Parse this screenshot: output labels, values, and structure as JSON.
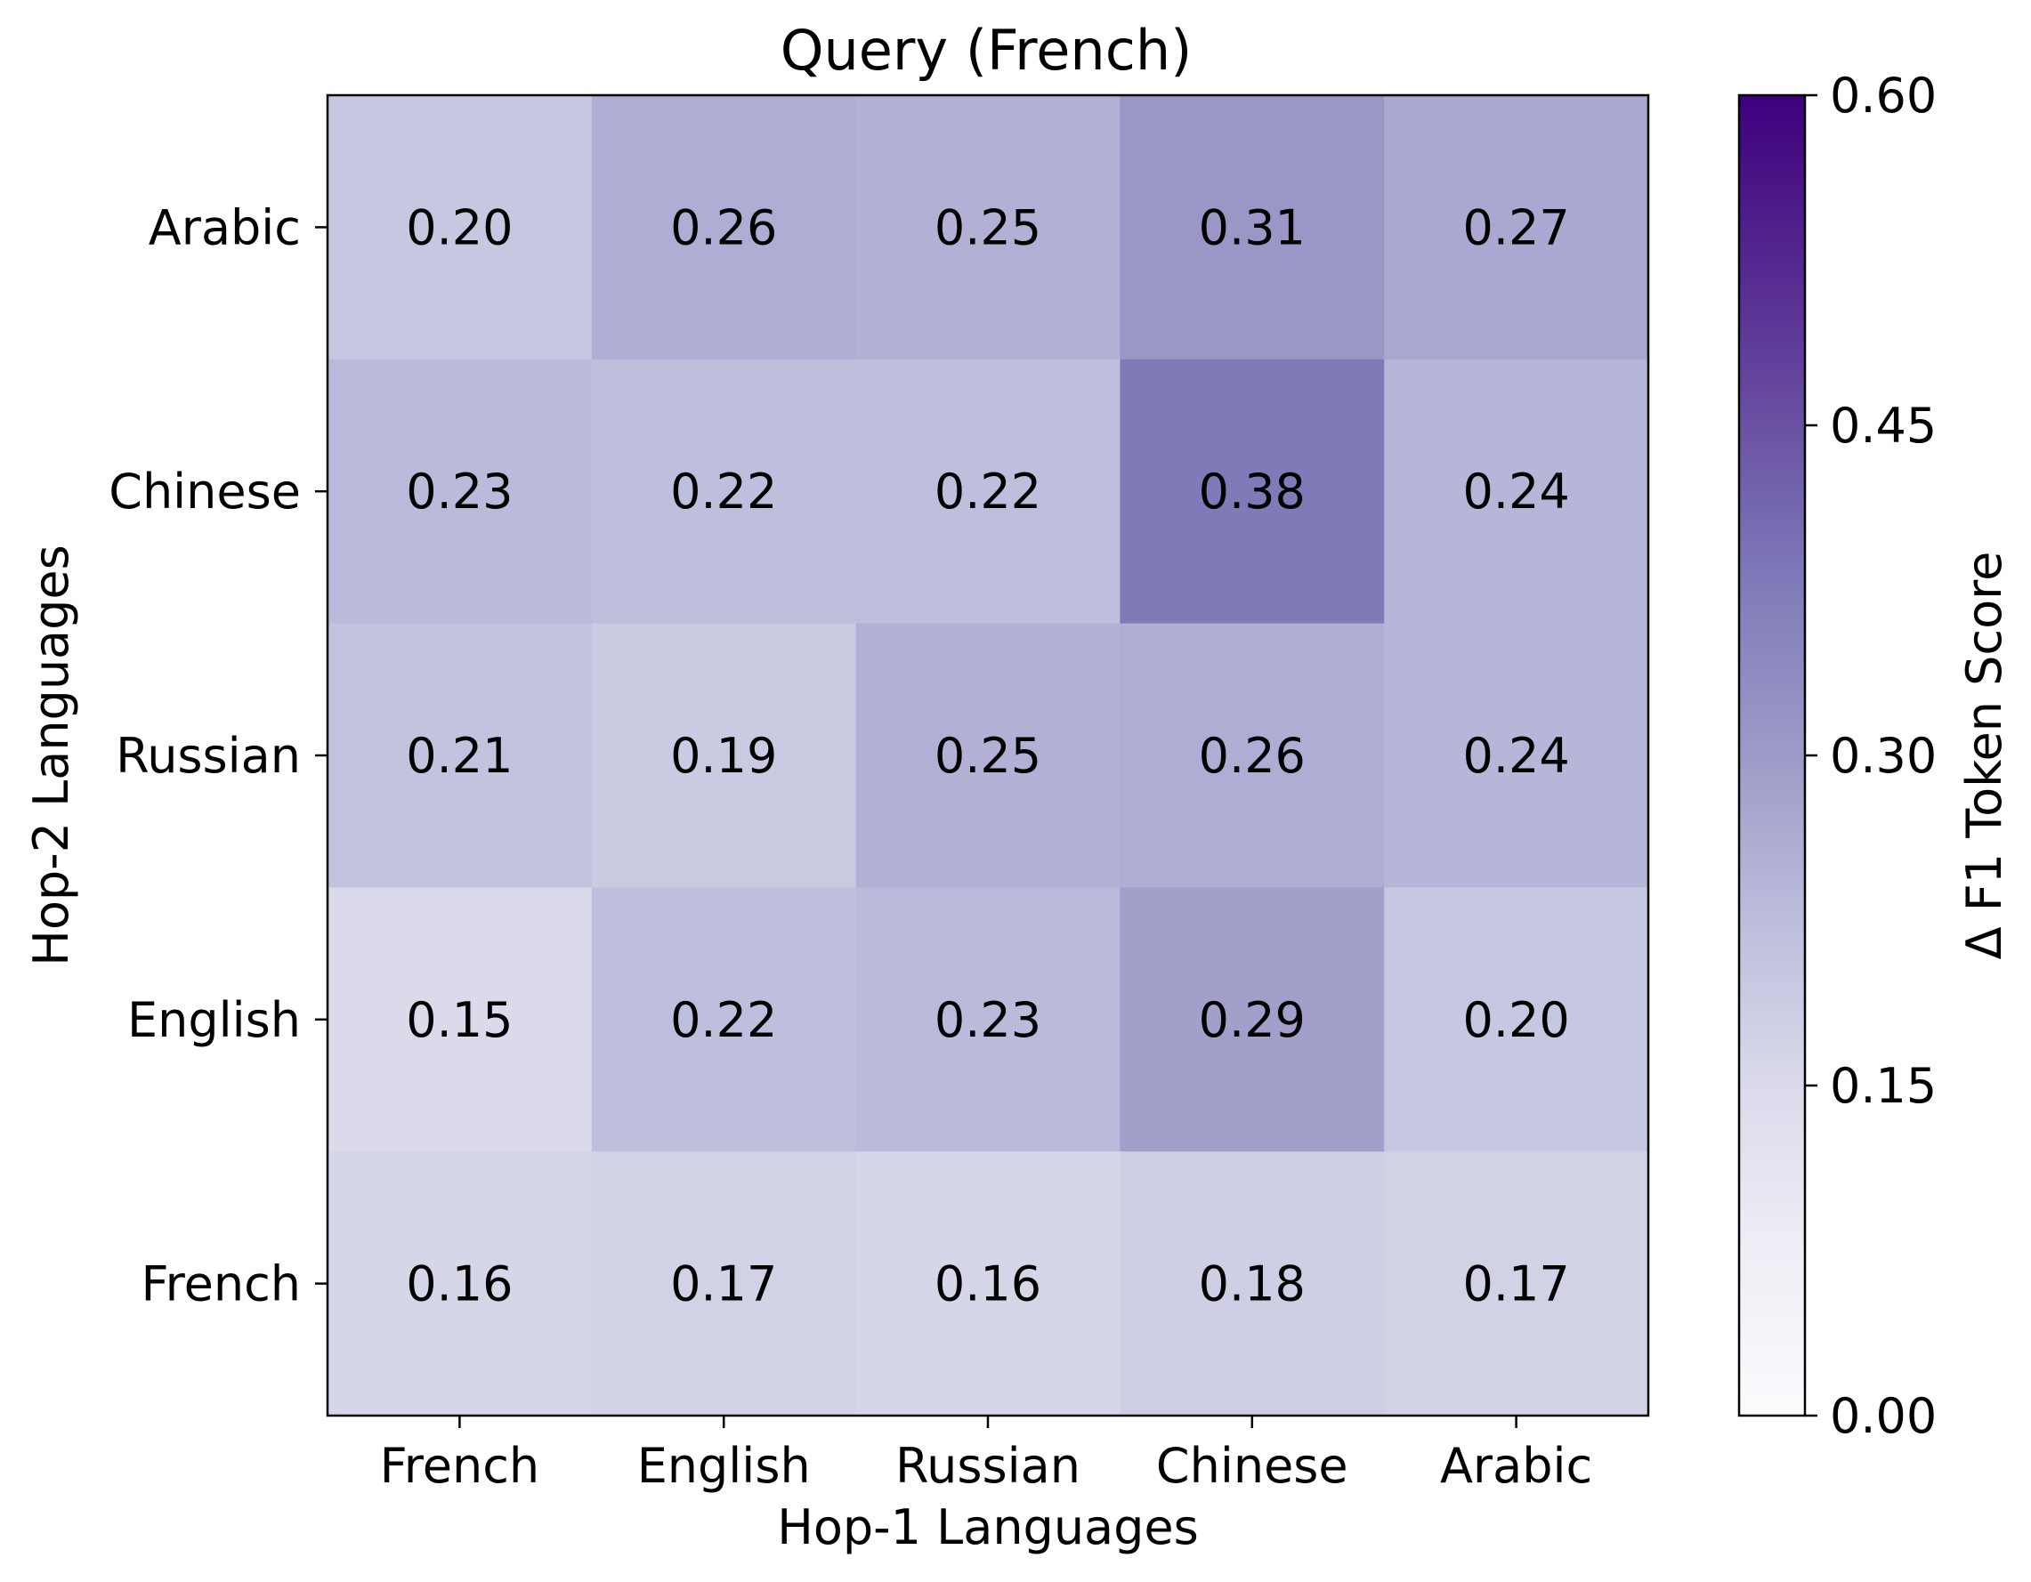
{
  "chart_data": {
    "type": "heatmap",
    "title": "Query (French)",
    "xlabel": "Hop-1 Languages",
    "ylabel": "Hop-2 Languages",
    "x_categories": [
      "French",
      "English",
      "Russian",
      "Chinese",
      "Arabic"
    ],
    "y_categories_top_to_bottom": [
      "Arabic",
      "Chinese",
      "Russian",
      "English",
      "French"
    ],
    "values": [
      [
        0.2,
        0.26,
        0.25,
        0.31,
        0.27
      ],
      [
        0.23,
        0.22,
        0.22,
        0.38,
        0.24
      ],
      [
        0.21,
        0.19,
        0.25,
        0.26,
        0.24
      ],
      [
        0.15,
        0.22,
        0.23,
        0.29,
        0.2
      ],
      [
        0.16,
        0.17,
        0.16,
        0.18,
        0.17
      ]
    ],
    "value_labels": [
      [
        "0.20",
        "0.26",
        "0.25",
        "0.31",
        "0.27"
      ],
      [
        "0.23",
        "0.22",
        "0.22",
        "0.38",
        "0.24"
      ],
      [
        "0.21",
        "0.19",
        "0.25",
        "0.26",
        "0.24"
      ],
      [
        "0.15",
        "0.22",
        "0.23",
        "0.29",
        "0.20"
      ],
      [
        "0.16",
        "0.17",
        "0.16",
        "0.18",
        "0.17"
      ]
    ],
    "colorbar": {
      "label": "Δ F1 Token Score",
      "range": [
        0.0,
        0.6
      ],
      "ticks": [
        "0.00",
        "0.15",
        "0.30",
        "0.45",
        "0.60"
      ],
      "colormap": "Purples",
      "color_low": "#fcfbfd",
      "color_high": "#3f007d"
    },
    "grid": false
  }
}
